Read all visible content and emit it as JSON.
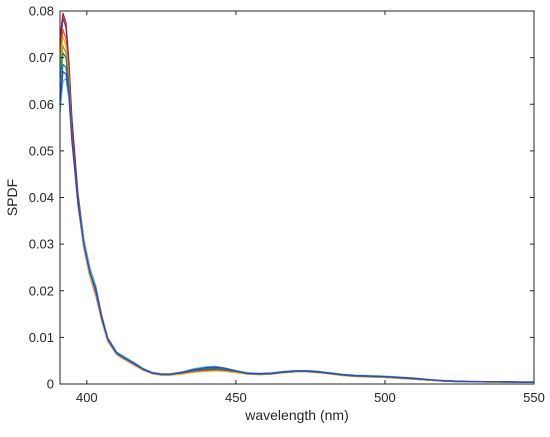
{
  "chart_data": {
    "type": "line",
    "title": "",
    "xlabel": "wavelength (nm)",
    "ylabel": "SPDF",
    "xlim": [
      391,
      550
    ],
    "ylim": [
      0,
      0.08
    ],
    "xticks": [
      400,
      450,
      500,
      550
    ],
    "yticks": [
      0,
      0.01,
      0.02,
      0.03,
      0.04,
      0.05,
      0.06,
      0.07,
      0.08
    ],
    "ytick_labels": [
      "0",
      "0.01",
      "0.02",
      "0.03",
      "0.04",
      "0.05",
      "0.06",
      "0.07",
      "0.08"
    ],
    "grid": false,
    "legend": "none",
    "x": [
      391,
      392,
      393,
      394,
      395,
      397,
      399,
      401,
      403,
      405,
      407,
      410,
      413,
      416,
      419,
      422,
      425,
      428,
      432,
      436,
      440,
      443,
      446,
      450,
      454,
      458,
      462,
      466,
      470,
      474,
      478,
      482,
      486,
      490,
      495,
      500,
      505,
      510,
      515,
      520,
      525,
      530,
      535,
      540,
      545,
      550
    ],
    "series": [
      {
        "color": "#7e2f8e",
        "values": [
          0.072,
          0.0785,
          0.0765,
          0.068,
          0.056,
          0.04,
          0.03,
          0.024,
          0.02,
          0.014,
          0.0095,
          0.0065,
          0.0053,
          0.0042,
          0.003,
          0.0023,
          0.002,
          0.002,
          0.0023,
          0.0028,
          0.003,
          0.0031,
          0.003,
          0.0026,
          0.0022,
          0.0021,
          0.0022,
          0.0025,
          0.0027,
          0.0027,
          0.0025,
          0.0022,
          0.0019,
          0.0017,
          0.0016,
          0.0015,
          0.0013,
          0.0011,
          0.0008,
          0.0006,
          0.0005,
          0.0005,
          0.0005,
          0.0004,
          0.0004,
          0.0004
        ]
      },
      {
        "color": "#a2142f",
        "values": [
          0.074,
          0.0795,
          0.0775,
          0.069,
          0.057,
          0.041,
          0.031,
          0.025,
          0.021,
          0.0145,
          0.0098,
          0.0067,
          0.0055,
          0.0044,
          0.0031,
          0.0024,
          0.0021,
          0.0021,
          0.0024,
          0.003,
          0.0033,
          0.0034,
          0.0032,
          0.0027,
          0.0023,
          0.0022,
          0.0023,
          0.0026,
          0.0028,
          0.0028,
          0.0026,
          0.0023,
          0.002,
          0.0018,
          0.0017,
          0.0016,
          0.0014,
          0.0012,
          0.0009,
          0.0007,
          0.0006,
          0.0005,
          0.0005,
          0.0005,
          0.0004,
          0.0004
        ]
      },
      {
        "color": "#d95319",
        "values": [
          0.07,
          0.076,
          0.074,
          0.066,
          0.054,
          0.039,
          0.029,
          0.023,
          0.019,
          0.0135,
          0.0092,
          0.0063,
          0.0051,
          0.004,
          0.0029,
          0.0022,
          0.0019,
          0.0019,
          0.0022,
          0.0026,
          0.0028,
          0.0029,
          0.0028,
          0.0025,
          0.0021,
          0.002,
          0.0021,
          0.0024,
          0.0026,
          0.0026,
          0.0024,
          0.0021,
          0.0018,
          0.0016,
          0.0015,
          0.0014,
          0.0012,
          0.001,
          0.0008,
          0.0006,
          0.0005,
          0.0005,
          0.0004,
          0.0004,
          0.0004,
          0.0004
        ]
      },
      {
        "color": "#edb120",
        "values": [
          0.068,
          0.0745,
          0.0725,
          0.065,
          0.053,
          0.038,
          0.029,
          0.023,
          0.0195,
          0.0138,
          0.0094,
          0.0064,
          0.0052,
          0.0041,
          0.0029,
          0.0022,
          0.0019,
          0.0019,
          0.0021,
          0.0025,
          0.0027,
          0.0028,
          0.0027,
          0.0024,
          0.0021,
          0.002,
          0.0021,
          0.0024,
          0.0026,
          0.0026,
          0.0024,
          0.0021,
          0.0018,
          0.0016,
          0.0015,
          0.0014,
          0.0012,
          0.001,
          0.0008,
          0.0006,
          0.0005,
          0.0005,
          0.0004,
          0.0004,
          0.0004,
          0.0004
        ]
      },
      {
        "color": "#77ac30",
        "values": [
          0.067,
          0.0725,
          0.071,
          0.064,
          0.053,
          0.039,
          0.03,
          0.024,
          0.02,
          0.0142,
          0.0096,
          0.0066,
          0.0054,
          0.0043,
          0.0031,
          0.0024,
          0.0021,
          0.0021,
          0.0024,
          0.003,
          0.0034,
          0.0035,
          0.0033,
          0.0028,
          0.0023,
          0.0022,
          0.0023,
          0.0026,
          0.0028,
          0.0028,
          0.0026,
          0.0023,
          0.002,
          0.0018,
          0.0017,
          0.0016,
          0.0014,
          0.0012,
          0.0009,
          0.0007,
          0.0006,
          0.0005,
          0.0005,
          0.0005,
          0.0004,
          0.0004
        ]
      },
      {
        "color": "#4dbeee",
        "values": [
          0.058,
          0.065,
          0.0655,
          0.061,
          0.052,
          0.04,
          0.031,
          0.025,
          0.021,
          0.0148,
          0.01,
          0.0069,
          0.0057,
          0.0046,
          0.0033,
          0.0025,
          0.0022,
          0.0022,
          0.0026,
          0.0033,
          0.0037,
          0.0038,
          0.0035,
          0.0029,
          0.0024,
          0.0023,
          0.0024,
          0.0027,
          0.0029,
          0.0029,
          0.0027,
          0.0024,
          0.0021,
          0.0019,
          0.0018,
          0.0017,
          0.0015,
          0.0013,
          0.001,
          0.0007,
          0.0006,
          0.0006,
          0.0005,
          0.0005,
          0.0005,
          0.0005
        ]
      },
      {
        "color": "#0072bd",
        "values": [
          0.062,
          0.0685,
          0.068,
          0.063,
          0.053,
          0.04,
          0.03,
          0.024,
          0.0205,
          0.0145,
          0.0098,
          0.0067,
          0.0055,
          0.0044,
          0.0032,
          0.0024,
          0.0021,
          0.0021,
          0.0025,
          0.0031,
          0.0035,
          0.0036,
          0.0034,
          0.0028,
          0.0023,
          0.0022,
          0.0023,
          0.0026,
          0.0028,
          0.0028,
          0.0026,
          0.0023,
          0.002,
          0.0018,
          0.0017,
          0.0016,
          0.0014,
          0.0012,
          0.0009,
          0.0007,
          0.0006,
          0.0005,
          0.0005,
          0.0005,
          0.0004,
          0.0004
        ]
      },
      {
        "color": "#1a7f7a",
        "values": [
          0.065,
          0.071,
          0.07,
          0.064,
          0.053,
          0.039,
          0.03,
          0.024,
          0.02,
          0.0141,
          0.0096,
          0.0066,
          0.0054,
          0.0043,
          0.0031,
          0.0023,
          0.002,
          0.002,
          0.0024,
          0.0029,
          0.0032,
          0.0033,
          0.0031,
          0.0027,
          0.0022,
          0.0021,
          0.0022,
          0.0025,
          0.0027,
          0.0027,
          0.0025,
          0.0022,
          0.0019,
          0.0017,
          0.0016,
          0.0015,
          0.0013,
          0.0011,
          0.0009,
          0.0006,
          0.0005,
          0.0005,
          0.0005,
          0.0004,
          0.0004,
          0.0004
        ]
      },
      {
        "color": "#3f3fbf",
        "values": [
          0.06,
          0.067,
          0.0665,
          0.062,
          0.052,
          0.039,
          0.03,
          0.024,
          0.02,
          0.0143,
          0.0097,
          0.0066,
          0.0054,
          0.0043,
          0.0031,
          0.0024,
          0.0021,
          0.0021,
          0.0025,
          0.0031,
          0.0035,
          0.0036,
          0.0034,
          0.0028,
          0.0023,
          0.0022,
          0.0023,
          0.0026,
          0.0028,
          0.0028,
          0.0026,
          0.0023,
          0.002,
          0.0018,
          0.0017,
          0.0016,
          0.0014,
          0.0012,
          0.0009,
          0.0007,
          0.0006,
          0.0005,
          0.0005,
          0.0005,
          0.0004,
          0.0004
        ]
      }
    ]
  }
}
